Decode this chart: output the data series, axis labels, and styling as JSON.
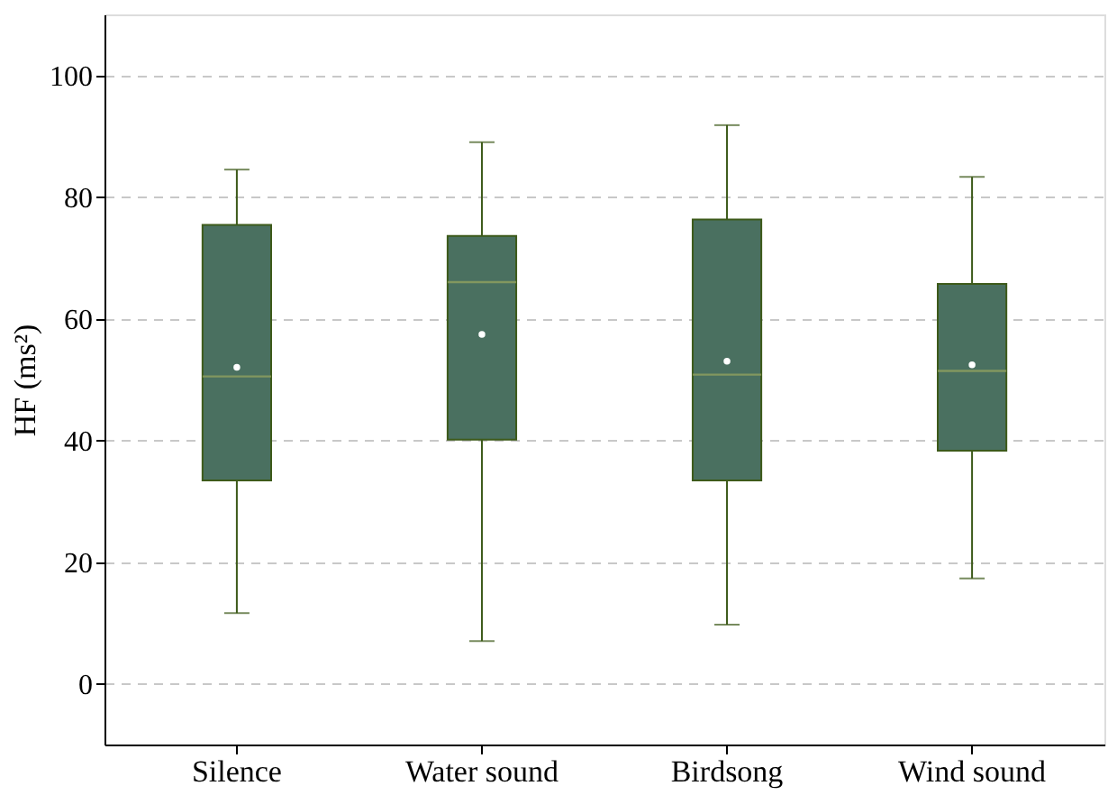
{
  "chart_data": {
    "type": "box",
    "ylabel": "HF (ms²)",
    "categories": [
      "Silence",
      "Water sound",
      "Birdsong",
      "Wind sound"
    ],
    "boxes": [
      {
        "low": 11.6,
        "q1": 33.4,
        "median": 50.5,
        "q3": 75.4,
        "high": 84.5,
        "mean": 52
      },
      {
        "low": 7,
        "q1": 40.1,
        "median": 66,
        "q3": 73.6,
        "high": 89,
        "mean": 57.4
      },
      {
        "low": 9.7,
        "q1": 33.4,
        "median": 50.8,
        "q3": 76.3,
        "high": 91.8,
        "mean": 53
      },
      {
        "low": 17.3,
        "q1": 38.3,
        "median": 51.4,
        "q3": 65.7,
        "high": 83.3,
        "mean": 52.4
      }
    ],
    "color": "#4a7060",
    "ylim": [
      -10,
      110
    ],
    "yticks": [
      0,
      20,
      40,
      60,
      80,
      100
    ],
    "grid": "y"
  }
}
